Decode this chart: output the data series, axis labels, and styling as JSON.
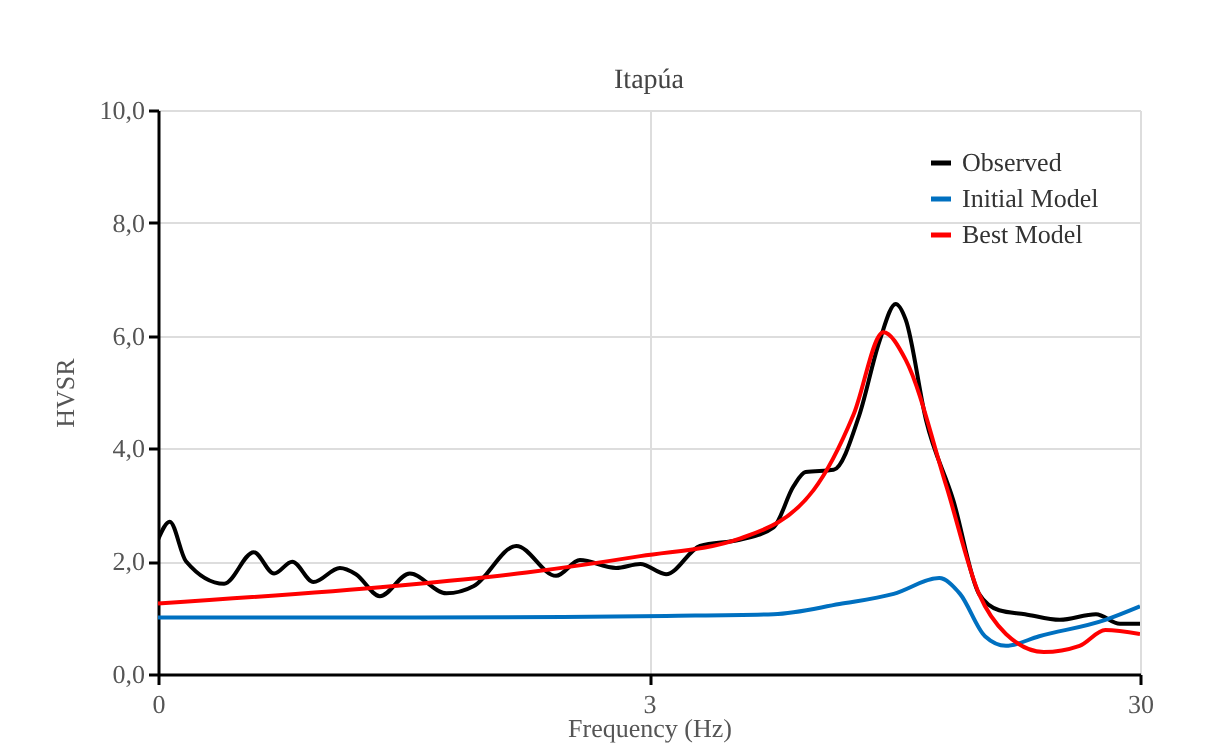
{
  "chart_data": {
    "type": "line",
    "title": "Itapúa",
    "xlabel": "Frequency (Hz)",
    "ylabel": "HVSR",
    "log": "x",
    "grid": true,
    "legend": "top right",
    "line_style": "solid",
    "marker": "none",
    "xlim": [
      0.3,
      30
    ],
    "xticks": [
      {
        "value": 0.3,
        "label": "0"
      },
      3,
      30
    ],
    "ylim": [
      0,
      10
    ],
    "yticks": [
      {
        "value": 0,
        "label": "0,0"
      },
      {
        "value": 2,
        "label": "2,0"
      },
      {
        "value": 4,
        "label": "4,0"
      },
      {
        "value": 6,
        "label": "6,0"
      },
      {
        "value": 8,
        "label": "8,0"
      },
      {
        "value": 10,
        "label": "10,0"
      }
    ],
    "series": [
      {
        "name": "Observed",
        "color": "#000000",
        "x": [
          0.3,
          0.317,
          0.342,
          0.409,
          0.47,
          0.517,
          0.563,
          0.622,
          0.704,
          0.759,
          0.849,
          0.977,
          1.16,
          1.32,
          1.61,
          1.94,
          2.17,
          2.57,
          2.88,
          3.25,
          3.81,
          4.59,
          5.38,
          5.91,
          6.25,
          7.13,
          8.05,
          8.84,
          9.54,
          10.0,
          11.0,
          12.5,
          14.1,
          15.5,
          17.5,
          20.6,
          24.4,
          27.3,
          30
        ],
        "values": [
          2.38,
          2.7,
          2.0,
          1.6,
          2.16,
          1.78,
          1.99,
          1.63,
          1.88,
          1.77,
          1.38,
          1.78,
          1.43,
          1.56,
          2.27,
          1.74,
          2.02,
          1.88,
          1.95,
          1.77,
          2.27,
          2.38,
          2.6,
          3.33,
          3.58,
          3.62,
          4.6,
          5.9,
          6.56,
          6.28,
          4.5,
          3.08,
          1.42,
          1.13,
          1.06,
          0.96,
          1.06,
          0.89,
          0.89
        ]
      },
      {
        "name": "Initial Model",
        "color": "#0070c0",
        "x": [
          0.3,
          1,
          2,
          3.25,
          5.38,
          7.33,
          9.45,
          11.7,
          12.9,
          14.5,
          16.0,
          18.7,
          25.5,
          30
        ],
        "values": [
          1.0,
          1.0,
          1.01,
          1.03,
          1.06,
          1.24,
          1.42,
          1.7,
          1.42,
          0.67,
          0.5,
          0.67,
          0.96,
          1.2
        ]
      },
      {
        "name": "Best Model",
        "color": "#ff0000",
        "x": [
          0.3,
          0.907,
          1.69,
          2.88,
          4.59,
          6.49,
          7.83,
          9.0,
          10.0,
          12.1,
          14.1,
          16.0,
          19.1,
          22.6,
          25.5,
          30
        ],
        "values": [
          1.25,
          1.56,
          1.8,
          2.09,
          2.4,
          3.26,
          4.6,
          6.06,
          5.57,
          3.33,
          1.42,
          0.71,
          0.39,
          0.5,
          0.78,
          0.71
        ]
      }
    ]
  }
}
